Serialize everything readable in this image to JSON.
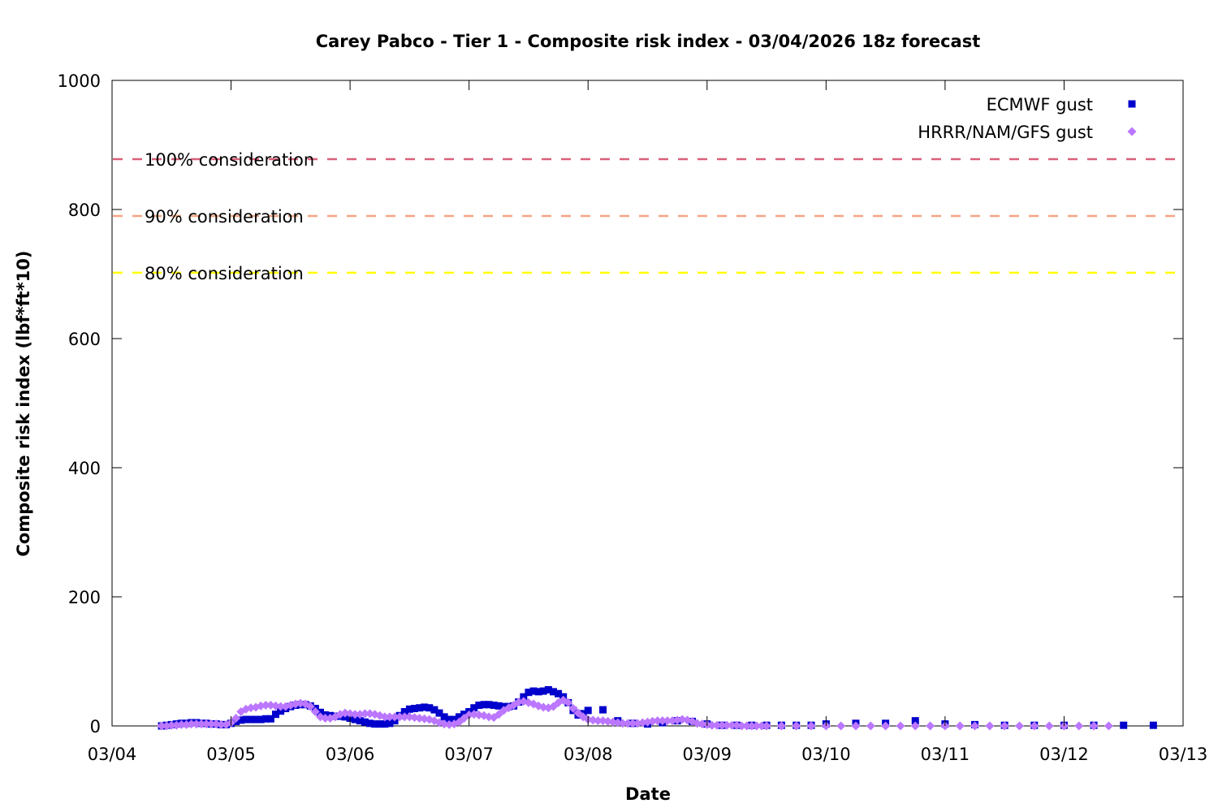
{
  "chart_data": {
    "type": "scatter",
    "title": "Carey Pabco - Tier 1 - Composite risk index - 03/04/2026 18z forecast",
    "xlabel": "Date",
    "ylabel": "Composite risk index (lbf*ft*10)",
    "xlim": [
      "03/04",
      "03/13"
    ],
    "ylim": [
      0,
      1000
    ],
    "x_ticks": [
      "03/04",
      "03/05",
      "03/06",
      "03/07",
      "03/08",
      "03/09",
      "03/10",
      "03/11",
      "03/12",
      "03/13"
    ],
    "y_ticks": [
      0,
      200,
      400,
      600,
      800,
      1000
    ],
    "grid": false,
    "legend_position": "top-right",
    "thresholds": [
      {
        "label": "100% consideration",
        "value": 878,
        "color": "#d9607a"
      },
      {
        "label": "90% consideration",
        "value": 790,
        "color": "#f4a582"
      },
      {
        "label": "80% consideration",
        "value": 702,
        "color": "#ffff00"
      }
    ],
    "series": [
      {
        "name": "ECMWF gust",
        "marker": "square",
        "color": "#0000cc",
        "points": [
          [
            "03/04 10:00",
            0
          ],
          [
            "03/04 11:00",
            1
          ],
          [
            "03/04 12:00",
            2
          ],
          [
            "03/04 13:00",
            3
          ],
          [
            "03/04 14:00",
            4
          ],
          [
            "03/04 15:00",
            4
          ],
          [
            "03/04 16:00",
            5
          ],
          [
            "03/04 17:00",
            5
          ],
          [
            "03/04 18:00",
            4
          ],
          [
            "03/04 19:00",
            4
          ],
          [
            "03/04 20:00",
            3
          ],
          [
            "03/04 21:00",
            3
          ],
          [
            "03/04 22:00",
            2
          ],
          [
            "03/04 23:00",
            2
          ],
          [
            "03/05 00:00",
            4
          ],
          [
            "03/05 01:00",
            7
          ],
          [
            "03/05 02:00",
            9
          ],
          [
            "03/05 03:00",
            10
          ],
          [
            "03/05 04:00",
            10
          ],
          [
            "03/05 05:00",
            10
          ],
          [
            "03/05 06:00",
            10
          ],
          [
            "03/05 07:00",
            11
          ],
          [
            "03/05 08:00",
            11
          ],
          [
            "03/05 09:00",
            18
          ],
          [
            "03/05 10:00",
            23
          ],
          [
            "03/05 11:00",
            27
          ],
          [
            "03/05 12:00",
            30
          ],
          [
            "03/05 13:00",
            32
          ],
          [
            "03/05 14:00",
            33
          ],
          [
            "03/05 15:00",
            33
          ],
          [
            "03/05 16:00",
            31
          ],
          [
            "03/05 17:00",
            27
          ],
          [
            "03/05 18:00",
            21
          ],
          [
            "03/05 19:00",
            17
          ],
          [
            "03/05 20:00",
            16
          ],
          [
            "03/05 21:00",
            15
          ],
          [
            "03/05 22:00",
            15
          ],
          [
            "03/05 23:00",
            14
          ],
          [
            "03/06 00:00",
            12
          ],
          [
            "03/06 01:00",
            10
          ],
          [
            "03/06 02:00",
            8
          ],
          [
            "03/06 03:00",
            6
          ],
          [
            "03/06 04:00",
            4
          ],
          [
            "03/06 05:00",
            3
          ],
          [
            "03/06 06:00",
            3
          ],
          [
            "03/06 07:00",
            3
          ],
          [
            "03/06 08:00",
            4
          ],
          [
            "03/06 09:00",
            8
          ],
          [
            "03/06 10:00",
            16
          ],
          [
            "03/06 11:00",
            22
          ],
          [
            "03/06 12:00",
            26
          ],
          [
            "03/06 13:00",
            27
          ],
          [
            "03/06 14:00",
            28
          ],
          [
            "03/06 15:00",
            29
          ],
          [
            "03/06 16:00",
            28
          ],
          [
            "03/06 17:00",
            25
          ],
          [
            "03/06 18:00",
            20
          ],
          [
            "03/06 19:00",
            14
          ],
          [
            "03/06 20:00",
            10
          ],
          [
            "03/06 21:00",
            10
          ],
          [
            "03/06 22:00",
            14
          ],
          [
            "03/06 23:00",
            18
          ],
          [
            "03/07 00:00",
            22
          ],
          [
            "03/07 01:00",
            28
          ],
          [
            "03/07 02:00",
            32
          ],
          [
            "03/07 03:00",
            33
          ],
          [
            "03/07 04:00",
            33
          ],
          [
            "03/07 05:00",
            32
          ],
          [
            "03/07 06:00",
            31
          ],
          [
            "03/07 07:00",
            30
          ],
          [
            "03/07 08:00",
            30
          ],
          [
            "03/07 09:00",
            31
          ],
          [
            "03/07 10:00",
            37
          ],
          [
            "03/07 11:00",
            45
          ],
          [
            "03/07 12:00",
            52
          ],
          [
            "03/07 13:00",
            54
          ],
          [
            "03/07 14:00",
            53
          ],
          [
            "03/07 15:00",
            54
          ],
          [
            "03/07 16:00",
            56
          ],
          [
            "03/07 17:00",
            53
          ],
          [
            "03/07 18:00",
            50
          ],
          [
            "03/07 19:00",
            45
          ],
          [
            "03/07 20:00",
            36
          ],
          [
            "03/07 21:00",
            24
          ],
          [
            "03/07 22:00",
            17
          ],
          [
            "03/07 23:00",
            19
          ],
          [
            "03/08 00:00",
            24
          ],
          [
            "03/08 03:00",
            25
          ],
          [
            "03/08 06:00",
            8
          ],
          [
            "03/08 09:00",
            4
          ],
          [
            "03/08 12:00",
            3
          ],
          [
            "03/08 15:00",
            5
          ],
          [
            "03/08 18:00",
            8
          ],
          [
            "03/08 21:00",
            7
          ],
          [
            "03/09 00:00",
            3
          ],
          [
            "03/09 03:00",
            1
          ],
          [
            "03/09 06:00",
            1
          ],
          [
            "03/09 09:00",
            1
          ],
          [
            "03/09 12:00",
            1
          ],
          [
            "03/09 15:00",
            1
          ],
          [
            "03/09 18:00",
            1
          ],
          [
            "03/09 21:00",
            1
          ],
          [
            "03/10 00:00",
            3
          ],
          [
            "03/10 06:00",
            4
          ],
          [
            "03/10 12:00",
            4
          ],
          [
            "03/10 18:00",
            8
          ],
          [
            "03/11 00:00",
            3
          ],
          [
            "03/11 06:00",
            2
          ],
          [
            "03/11 12:00",
            1
          ],
          [
            "03/11 18:00",
            1
          ],
          [
            "03/12 00:00",
            1
          ],
          [
            "03/12 06:00",
            1
          ],
          [
            "03/12 12:00",
            1
          ],
          [
            "03/12 18:00",
            1
          ]
        ]
      },
      {
        "name": "HRRR/NAM/GFS gust",
        "marker": "diamond",
        "color": "#bb77ff",
        "points": [
          [
            "03/04 10:00",
            0
          ],
          [
            "03/04 11:00",
            0
          ],
          [
            "03/04 12:00",
            1
          ],
          [
            "03/04 13:00",
            1
          ],
          [
            "03/04 14:00",
            2
          ],
          [
            "03/04 15:00",
            2
          ],
          [
            "03/04 16:00",
            3
          ],
          [
            "03/04 17:00",
            3
          ],
          [
            "03/04 18:00",
            3
          ],
          [
            "03/04 19:00",
            3
          ],
          [
            "03/04 20:00",
            3
          ],
          [
            "03/04 21:00",
            3
          ],
          [
            "03/04 22:00",
            2
          ],
          [
            "03/04 23:00",
            2
          ],
          [
            "03/05 00:00",
            5
          ],
          [
            "03/05 01:00",
            12
          ],
          [
            "03/05 02:00",
            22
          ],
          [
            "03/05 03:00",
            26
          ],
          [
            "03/05 04:00",
            28
          ],
          [
            "03/05 05:00",
            29
          ],
          [
            "03/05 06:00",
            31
          ],
          [
            "03/05 07:00",
            32
          ],
          [
            "03/05 08:00",
            32
          ],
          [
            "03/05 09:00",
            31
          ],
          [
            "03/05 10:00",
            30
          ],
          [
            "03/05 11:00",
            30
          ],
          [
            "03/05 12:00",
            32
          ],
          [
            "03/05 13:00",
            34
          ],
          [
            "03/05 14:00",
            35
          ],
          [
            "03/05 15:00",
            34
          ],
          [
            "03/05 16:00",
            30
          ],
          [
            "03/05 17:00",
            22
          ],
          [
            "03/05 18:00",
            14
          ],
          [
            "03/05 19:00",
            12
          ],
          [
            "03/05 20:00",
            12
          ],
          [
            "03/05 21:00",
            14
          ],
          [
            "03/05 22:00",
            18
          ],
          [
            "03/05 23:00",
            20
          ],
          [
            "03/06 00:00",
            19
          ],
          [
            "03/06 01:00",
            18
          ],
          [
            "03/06 02:00",
            18
          ],
          [
            "03/06 03:00",
            19
          ],
          [
            "03/06 04:00",
            19
          ],
          [
            "03/06 05:00",
            18
          ],
          [
            "03/06 06:00",
            16
          ],
          [
            "03/06 07:00",
            14
          ],
          [
            "03/06 08:00",
            14
          ],
          [
            "03/06 09:00",
            14
          ],
          [
            "03/06 10:00",
            14
          ],
          [
            "03/06 11:00",
            14
          ],
          [
            "03/06 12:00",
            14
          ],
          [
            "03/06 13:00",
            13
          ],
          [
            "03/06 14:00",
            12
          ],
          [
            "03/06 15:00",
            11
          ],
          [
            "03/06 16:00",
            10
          ],
          [
            "03/06 17:00",
            8
          ],
          [
            "03/06 18:00",
            5
          ],
          [
            "03/06 19:00",
            3
          ],
          [
            "03/06 20:00",
            2
          ],
          [
            "03/06 21:00",
            3
          ],
          [
            "03/06 22:00",
            6
          ],
          [
            "03/06 23:00",
            12
          ],
          [
            "03/07 00:00",
            17
          ],
          [
            "03/07 01:00",
            18
          ],
          [
            "03/07 02:00",
            17
          ],
          [
            "03/07 03:00",
            16
          ],
          [
            "03/07 04:00",
            14
          ],
          [
            "03/07 05:00",
            13
          ],
          [
            "03/07 06:00",
            18
          ],
          [
            "03/07 07:00",
            24
          ],
          [
            "03/07 08:00",
            28
          ],
          [
            "03/07 09:00",
            32
          ],
          [
            "03/07 10:00",
            37
          ],
          [
            "03/07 11:00",
            38
          ],
          [
            "03/07 12:00",
            36
          ],
          [
            "03/07 13:00",
            34
          ],
          [
            "03/07 14:00",
            31
          ],
          [
            "03/07 15:00",
            29
          ],
          [
            "03/07 16:00",
            28
          ],
          [
            "03/07 17:00",
            30
          ],
          [
            "03/07 18:00",
            36
          ],
          [
            "03/07 19:00",
            40
          ],
          [
            "03/07 20:00",
            36
          ],
          [
            "03/07 21:00",
            27
          ],
          [
            "03/07 22:00",
            20
          ],
          [
            "03/07 23:00",
            14
          ],
          [
            "03/08 00:00",
            10
          ],
          [
            "03/08 01:00",
            9
          ],
          [
            "03/08 02:00",
            8
          ],
          [
            "03/08 03:00",
            8
          ],
          [
            "03/08 04:00",
            7
          ],
          [
            "03/08 05:00",
            6
          ],
          [
            "03/08 06:00",
            5
          ],
          [
            "03/08 07:00",
            4
          ],
          [
            "03/08 08:00",
            4
          ],
          [
            "03/08 09:00",
            4
          ],
          [
            "03/08 10:00",
            4
          ],
          [
            "03/08 11:00",
            5
          ],
          [
            "03/08 12:00",
            6
          ],
          [
            "03/08 13:00",
            7
          ],
          [
            "03/08 14:00",
            8
          ],
          [
            "03/08 15:00",
            8
          ],
          [
            "03/08 16:00",
            8
          ],
          [
            "03/08 17:00",
            8
          ],
          [
            "03/08 18:00",
            9
          ],
          [
            "03/08 19:00",
            10
          ],
          [
            "03/08 20:00",
            9
          ],
          [
            "03/08 21:00",
            7
          ],
          [
            "03/08 22:00",
            4
          ],
          [
            "03/08 23:00",
            3
          ],
          [
            "03/09 00:00",
            2
          ],
          [
            "03/09 01:00",
            1
          ],
          [
            "03/09 02:00",
            1
          ],
          [
            "03/09 03:00",
            1
          ],
          [
            "03/09 04:00",
            1
          ],
          [
            "03/09 05:00",
            1
          ],
          [
            "03/09 06:00",
            1
          ],
          [
            "03/09 07:00",
            0
          ],
          [
            "03/09 08:00",
            0
          ],
          [
            "03/09 09:00",
            0
          ],
          [
            "03/09 10:00",
            0
          ],
          [
            "03/09 11:00",
            0
          ],
          [
            "03/09 12:00",
            0
          ],
          [
            "03/09 15:00",
            0
          ],
          [
            "03/09 18:00",
            0
          ],
          [
            "03/09 21:00",
            0
          ],
          [
            "03/10 00:00",
            0
          ],
          [
            "03/10 03:00",
            0
          ],
          [
            "03/10 06:00",
            0
          ],
          [
            "03/10 09:00",
            0
          ],
          [
            "03/10 12:00",
            0
          ],
          [
            "03/10 15:00",
            0
          ],
          [
            "03/10 18:00",
            0
          ],
          [
            "03/10 21:00",
            0
          ],
          [
            "03/11 00:00",
            0
          ],
          [
            "03/11 03:00",
            0
          ],
          [
            "03/11 06:00",
            0
          ],
          [
            "03/11 09:00",
            0
          ],
          [
            "03/11 12:00",
            0
          ],
          [
            "03/11 15:00",
            0
          ],
          [
            "03/11 18:00",
            0
          ],
          [
            "03/11 21:00",
            0
          ],
          [
            "03/12 00:00",
            0
          ],
          [
            "03/12 03:00",
            0
          ],
          [
            "03/12 06:00",
            0
          ],
          [
            "03/12 09:00",
            0
          ]
        ]
      }
    ]
  }
}
